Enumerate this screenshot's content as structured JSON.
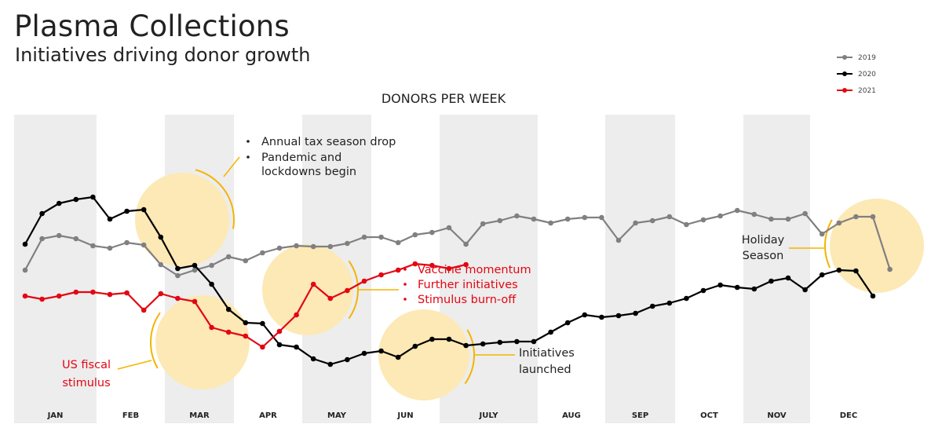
{
  "header": {
    "title": "Plasma Collections",
    "subtitle": "Initiatives driving donor growth"
  },
  "chart_data": {
    "type": "line",
    "title": "DONORS PER WEEK",
    "months": [
      "JAN",
      "FEB",
      "MAR",
      "APR",
      "MAY",
      "JUN",
      "JULY",
      "AUG",
      "SEP",
      "OCT",
      "NOV",
      "DEC"
    ],
    "series": [
      {
        "name": "2019",
        "color": "#808080",
        "values": [
          22,
          62,
          66,
          62,
          53,
          50,
          57,
          54,
          29,
          15,
          22,
          28,
          39,
          34,
          44,
          50,
          53,
          52,
          52,
          56,
          64,
          64,
          57,
          67,
          70,
          76,
          55,
          81,
          85,
          91,
          87,
          82,
          87,
          89,
          89,
          60,
          82,
          85,
          90,
          80,
          86,
          91,
          98,
          93,
          87,
          87,
          94,
          68,
          82,
          90,
          90,
          23
        ]
      },
      {
        "name": "2020",
        "color": "#000000",
        "values": [
          55,
          94,
          107,
          112,
          115,
          87,
          97,
          99,
          64,
          24,
          28,
          4,
          -28,
          -45,
          -46,
          -73,
          -76,
          -91,
          -98,
          -92,
          -84,
          -81,
          -89,
          -75,
          -66,
          -66,
          -74,
          -72,
          -70,
          -69,
          -69,
          -57,
          -45,
          -35,
          -38,
          -36,
          -33,
          -24,
          -20,
          -14,
          -4,
          3,
          0,
          -2,
          8,
          12,
          -3,
          16,
          22,
          21,
          -11
        ]
      },
      {
        "name": "2021",
        "color": "#e30613",
        "values": [
          -11,
          -15,
          -11,
          -6,
          -6,
          -9,
          -7,
          -29,
          -8,
          -14,
          -18,
          -51,
          -57,
          -62,
          -76,
          -56,
          -35,
          4,
          -14,
          -4,
          8,
          16,
          22,
          30,
          28,
          24,
          29
        ]
      }
    ],
    "annotations": {
      "tax": [
        "Annual tax season drop",
        "Pandemic and",
        "lockdowns begin"
      ],
      "vaccine": [
        "Vaccine momentum",
        "Further initiatives",
        "Stimulus burn-off"
      ],
      "stimulus": [
        "US fiscal",
        "stimulus"
      ],
      "initiatives": [
        "Initiatives",
        "launched"
      ],
      "holiday": [
        "Holiday",
        "Season"
      ]
    },
    "colors": {
      "highlight": "#fce9b5",
      "arc": "#f5b400",
      "band": "#ededed"
    }
  }
}
